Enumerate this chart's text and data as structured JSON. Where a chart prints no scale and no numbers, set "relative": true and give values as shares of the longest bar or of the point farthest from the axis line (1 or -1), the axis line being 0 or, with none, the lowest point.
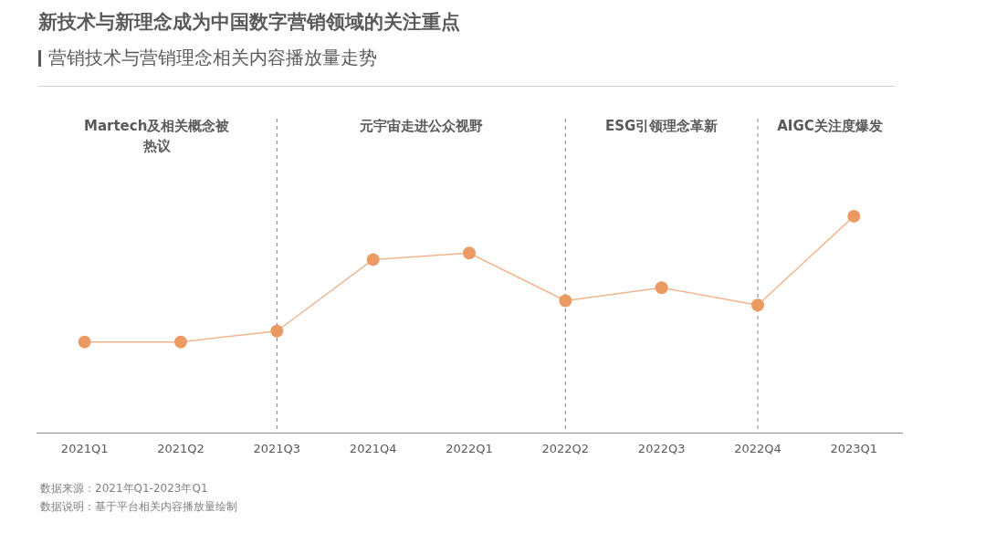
{
  "chart_data": {
    "type": "line",
    "title": "新技术与新理念成为中国数字营销领域的关注重点",
    "subtitle": "营销技术与营销理念相关内容播放量走势",
    "categories": [
      "2021Q1",
      "2021Q2",
      "2021Q3",
      "2021Q4",
      "2022Q1",
      "2022Q2",
      "2022Q3",
      "2022Q4",
      "2023Q1"
    ],
    "relative": true,
    "series": [
      {
        "color": "#ec9a64",
        "values": [
          0.42,
          0.42,
          0.47,
          0.8,
          0.83,
          0.61,
          0.67,
          0.59,
          1
        ]
      }
    ],
    "marker": "circle",
    "line_style": "solid",
    "grid": false,
    "legend": false,
    "ref_lines": [
      {
        "axis": "x",
        "value": "2021Q3",
        "line_style": "dashed",
        "color": "#7f7f7f"
      },
      {
        "axis": "x",
        "value": "2022Q2",
        "line_style": "dashed",
        "color": "#7f7f7f"
      },
      {
        "axis": "x",
        "value": "2022Q4",
        "line_style": "dashed",
        "color": "#7f7f7f"
      }
    ],
    "annotations": [
      "Martech及相关概念被热议",
      "元宇宙走进公众视野",
      "ESG引领理念革新",
      "AIGC关注度爆发",
      "数据来源：2021年Q1-2023年Q1",
      "数据说明：基于平台相关内容播放量绘制"
    ]
  }
}
